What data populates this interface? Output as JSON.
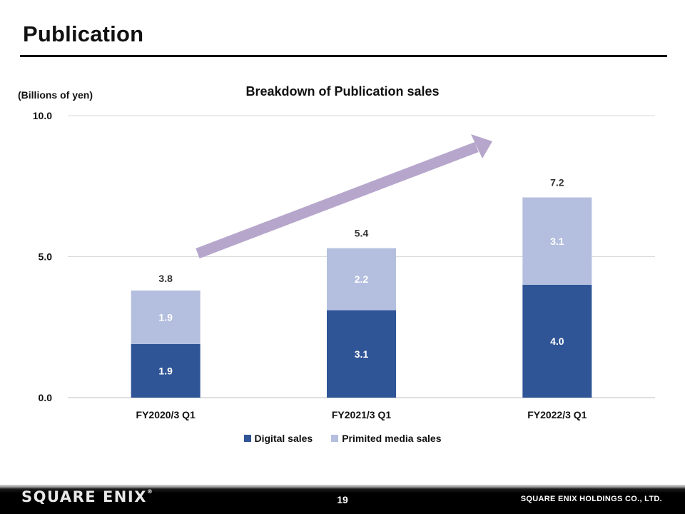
{
  "header": {
    "title": "Publication"
  },
  "chart_data": {
    "type": "bar",
    "stacked": true,
    "title": "Breakdown of Publication sales",
    "ylabel": "(Billions of yen)",
    "categories": [
      "FY2020/3 Q1",
      "FY2021/3 Q1",
      "FY2022/3 Q1"
    ],
    "series": [
      {
        "name": "Digital sales",
        "values": [
          1.9,
          3.1,
          4.0
        ],
        "color": "#305597"
      },
      {
        "name": "Primited media sales",
        "values": [
          1.9,
          2.2,
          3.1
        ],
        "color": "#b4bfdf"
      }
    ],
    "totals": [
      3.8,
      5.4,
      7.2
    ],
    "ylim": [
      0,
      10
    ],
    "yticks": [
      "0.0",
      "5.0",
      "10.0"
    ],
    "grid": true,
    "legend": "bottom",
    "annotation": {
      "type": "growth-arrow",
      "color": "#b6a6cc"
    }
  },
  "footer": {
    "logo": "SQUARE ENIX",
    "logo_mark": "®",
    "page_number": "19",
    "company": "SQUARE ENIX HOLDINGS CO., LTD."
  }
}
